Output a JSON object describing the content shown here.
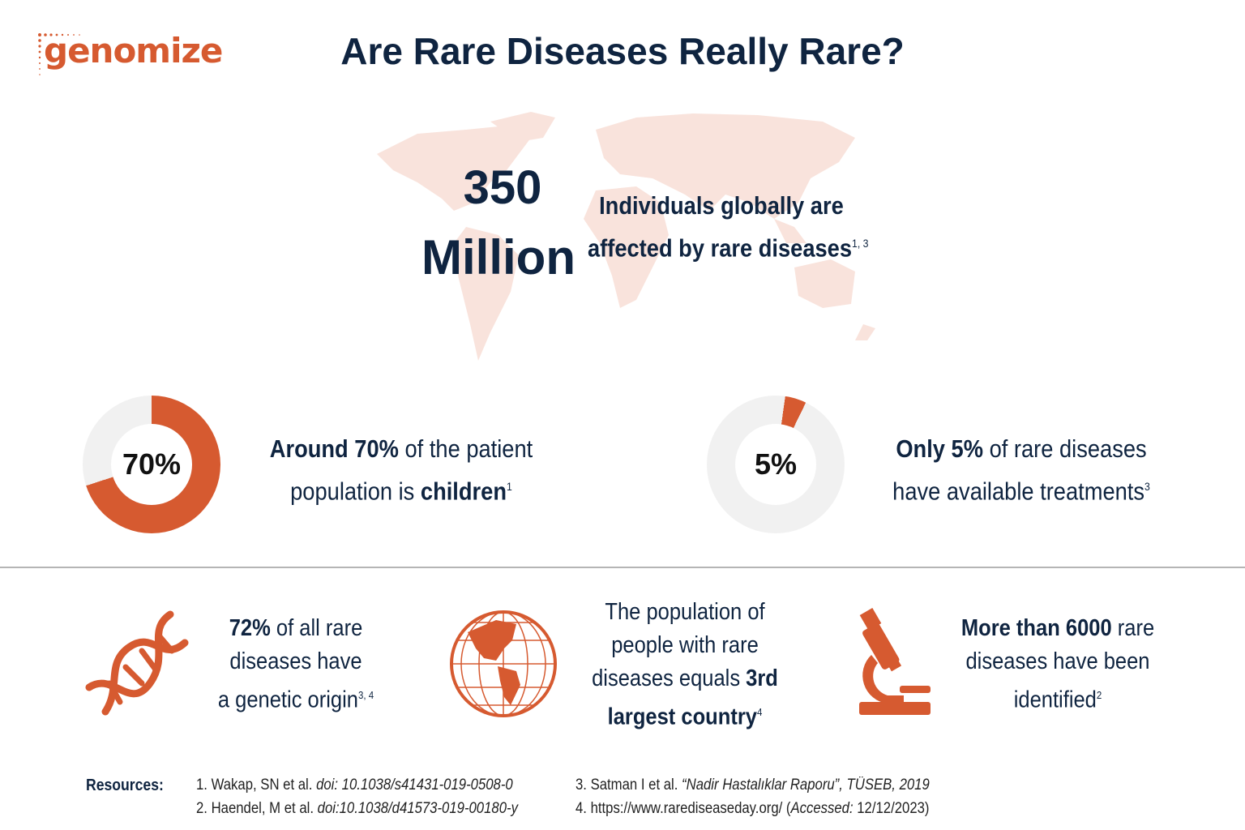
{
  "logo": {
    "text": "genomize"
  },
  "title": "Are Rare Diseases Really Rare?",
  "colors": {
    "accent": "#d65a30",
    "navy": "#0f2440",
    "map": "#f9e3dc",
    "ring": "#f1f1f1"
  },
  "hero": {
    "number": "350",
    "unit": "Million",
    "line1": "Individuals globally are",
    "line2": "affected by rare diseases",
    "refs": "1, 3"
  },
  "stats": [
    {
      "percent": 70,
      "label": "70%",
      "bold1": "Around 70%",
      "text1": " of the patient",
      "text2": "population is ",
      "bold2": "children",
      "refs": "1"
    },
    {
      "percent": 5,
      "label": "5%",
      "bold1": "Only 5%",
      "text1": " of rare diseases",
      "text2": "have available treatments",
      "refs": "3"
    }
  ],
  "facts": [
    {
      "icon": "dna-icon",
      "bold": "72%",
      "l1": " of all rare",
      "l2": "diseases have",
      "l3": "a genetic origin",
      "refs": "3, 4"
    },
    {
      "icon": "globe-icon",
      "l1": "The population of",
      "l2": "people with rare",
      "l3": "diseases equals ",
      "bold": "3rd",
      "l4": "largest country",
      "refs": "4"
    },
    {
      "icon": "microscope-icon",
      "bold": "More than 6000",
      "l1": " rare",
      "l2": "diseases have been",
      "l3": "identified",
      "refs": "2"
    }
  ],
  "resources": {
    "label": "Resources:",
    "items": [
      {
        "plain": "1. Wakap, SN et al. ",
        "italic": "doi: 10.1038/s41431-019-0508-0",
        "tail": ""
      },
      {
        "plain": "2. Haendel, M et al. ",
        "italic": "doi:10.1038/d41573-019-00180-y",
        "tail": ""
      },
      {
        "plain": "3. Satman I et al. ",
        "italic": "“Nadir Hastalıklar Raporu”, TÜSEB, 2019",
        "tail": ""
      },
      {
        "plain": "4. https://www.rarediseaseday.org/ (",
        "italic": "Accessed:",
        "tail": " 12/12/2023)"
      }
    ]
  }
}
